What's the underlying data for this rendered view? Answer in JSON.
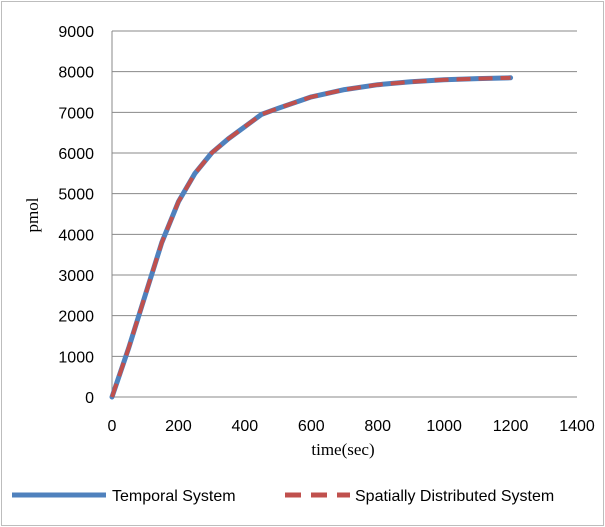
{
  "chart_data": {
    "type": "line",
    "xlabel": "time(sec)",
    "ylabel": "pmol",
    "xlim": [
      0,
      1400
    ],
    "ylim": [
      0,
      9000
    ],
    "x_ticks": [
      "0",
      "200",
      "400",
      "600",
      "800",
      "1000",
      "1200",
      "1400"
    ],
    "y_ticks": [
      "0",
      "1000",
      "2000",
      "3000",
      "4000",
      "5000",
      "6000",
      "7000",
      "8000",
      "9000"
    ],
    "grid": "horizontal",
    "legend_position": "bottom",
    "series": [
      {
        "name": "Temporal System",
        "color": "#4f81bd",
        "style": "solid",
        "x": [
          0,
          50,
          100,
          150,
          200,
          250,
          300,
          350,
          400,
          450,
          500,
          600,
          700,
          800,
          900,
          1000,
          1100,
          1200
        ],
        "y": [
          0,
          1200,
          2500,
          3800,
          4800,
          5500,
          6000,
          6350,
          6650,
          6950,
          7100,
          7380,
          7560,
          7680,
          7750,
          7800,
          7830,
          7850
        ]
      },
      {
        "name": "Spatially Distributed System",
        "color": "#c0504d",
        "style": "dashed",
        "x": [
          0,
          50,
          100,
          150,
          200,
          250,
          300,
          350,
          400,
          450,
          500,
          600,
          700,
          800,
          900,
          1000,
          1100,
          1200
        ],
        "y": [
          0,
          1200,
          2500,
          3800,
          4800,
          5500,
          6000,
          6350,
          6650,
          6950,
          7100,
          7380,
          7560,
          7680,
          7750,
          7800,
          7830,
          7850
        ]
      }
    ]
  }
}
